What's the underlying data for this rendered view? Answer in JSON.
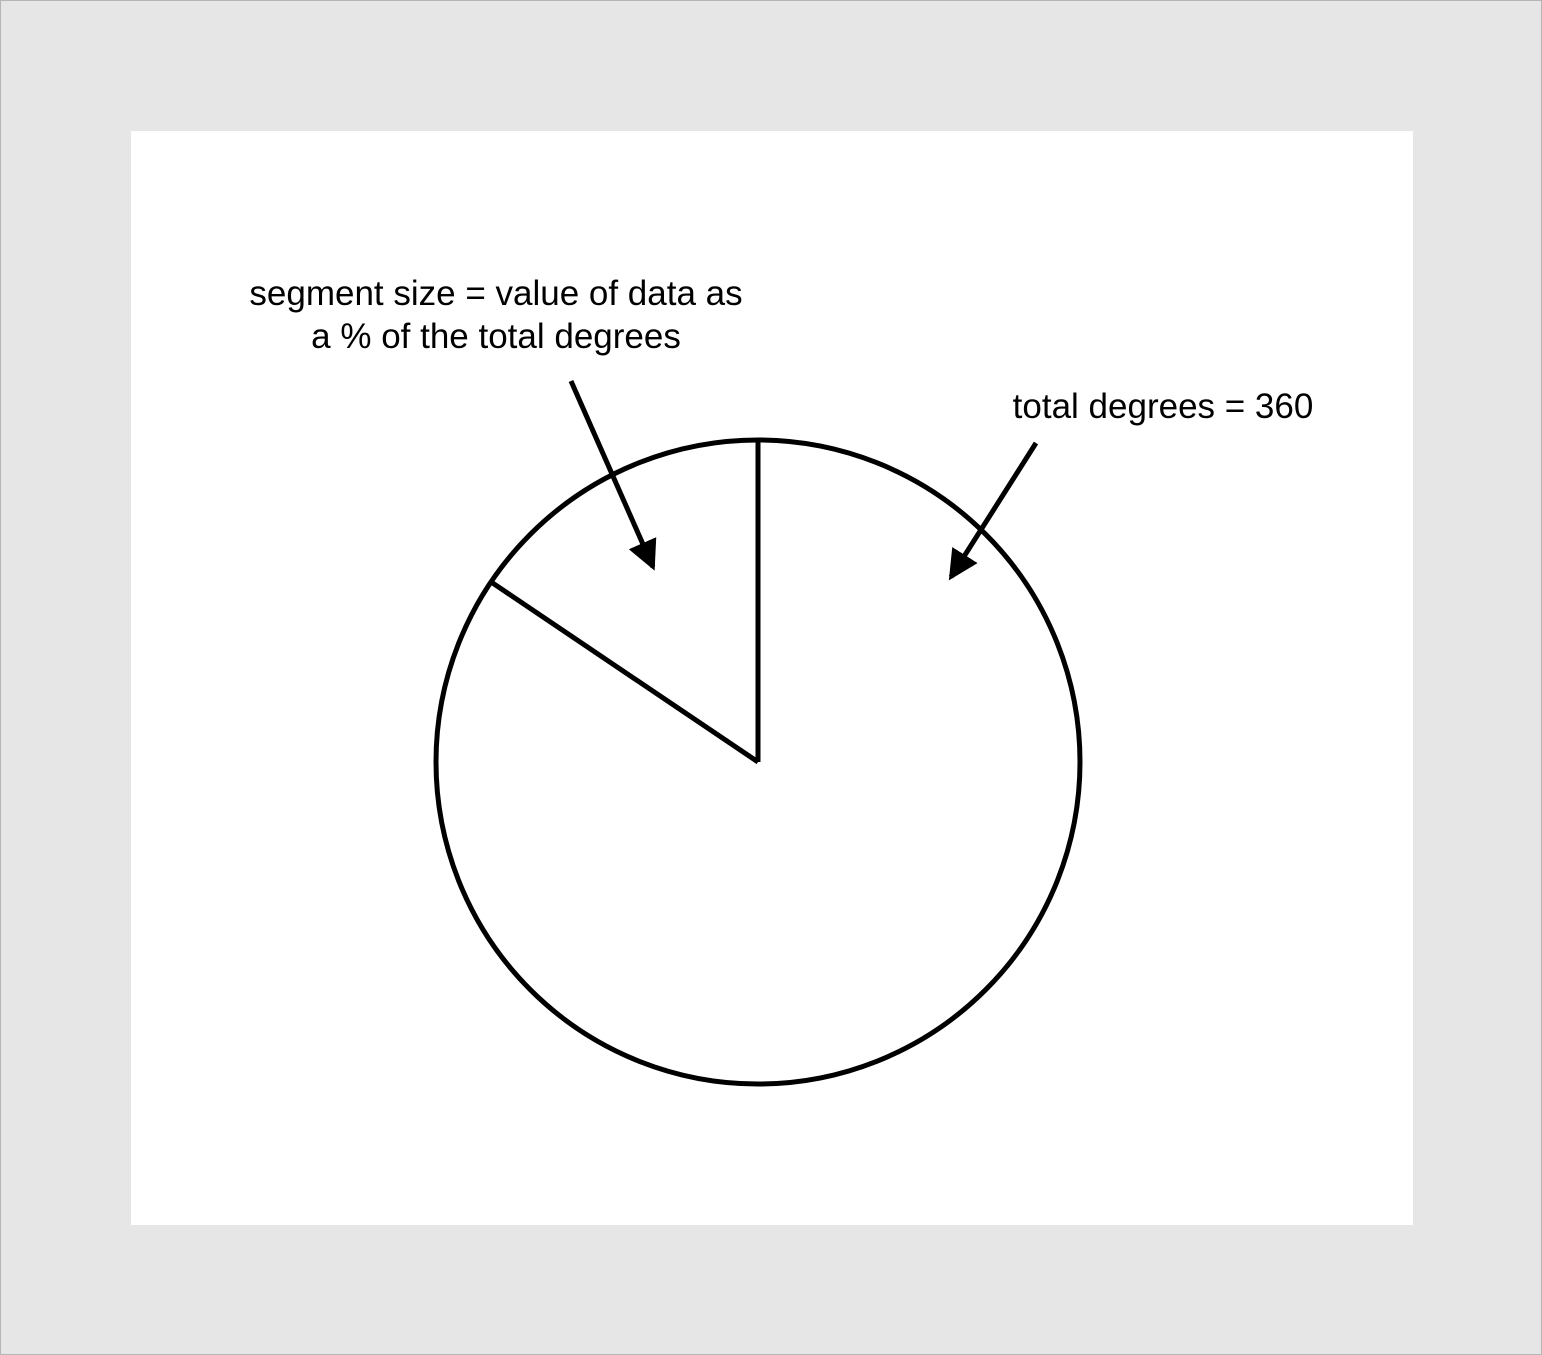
{
  "annotations": {
    "segment_line1": "segment size = value of data as",
    "segment_line2": "a % of the total degrees",
    "total": "total degrees = 360"
  },
  "chart_data": {
    "type": "pie",
    "slices": [
      {
        "value": 56
      },
      {
        "value": 304
      }
    ],
    "fill": "#ffffff",
    "stroke": "#000000"
  }
}
